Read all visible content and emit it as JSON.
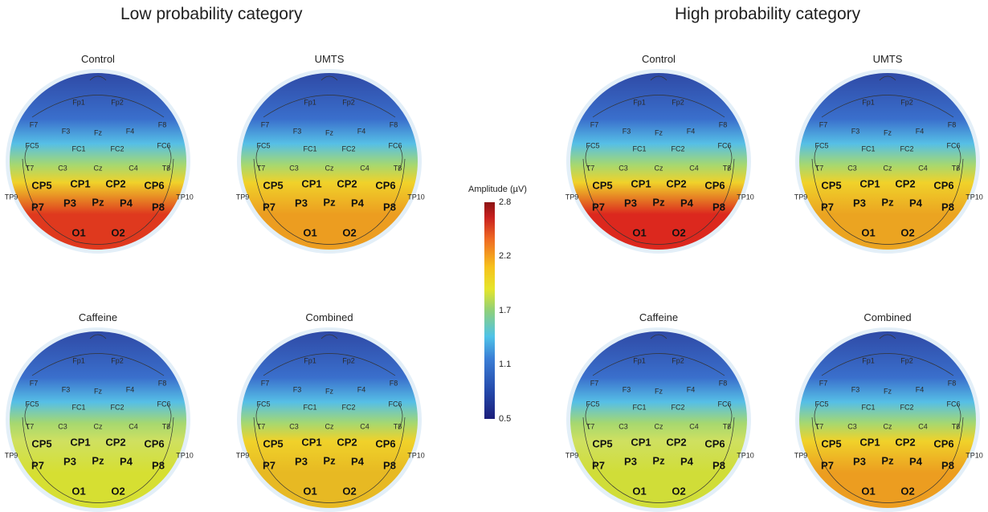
{
  "sections": {
    "low": "Low probability category",
    "high": "High probability category"
  },
  "conditions": {
    "control": "Control",
    "umts": "UMTS",
    "caffeine": "Caffeine",
    "combined": "Combined"
  },
  "electrodes": {
    "small": [
      "Fp1",
      "Fp2",
      "F7",
      "F3",
      "Fz",
      "F4",
      "F8",
      "FC5",
      "FC1",
      "FC2",
      "FC6",
      "T7",
      "C3",
      "Cz",
      "C4",
      "T8",
      "TP9",
      "TP10"
    ],
    "big": [
      "CP5",
      "CP1",
      "CP2",
      "CP6",
      "P7",
      "P3",
      "Pz",
      "P4",
      "P8",
      "O1",
      "O2"
    ]
  },
  "colorbar": {
    "title": "Amplitude (µV)",
    "ticks": [
      "2.8",
      "2.2",
      "1.7",
      "1.1",
      "0.5"
    ],
    "range": [
      0.5,
      2.8
    ]
  },
  "maps": [
    {
      "group": "low",
      "condition": "Control",
      "posterior_level": 0.95
    },
    {
      "group": "low",
      "condition": "UMTS",
      "posterior_level": 0.8
    },
    {
      "group": "low",
      "condition": "Caffeine",
      "posterior_level": 0.55
    },
    {
      "group": "low",
      "condition": "Combined",
      "posterior_level": 0.72
    },
    {
      "group": "high",
      "condition": "Control",
      "posterior_level": 0.97
    },
    {
      "group": "high",
      "condition": "UMTS",
      "posterior_level": 0.78
    },
    {
      "group": "high",
      "condition": "Caffeine",
      "posterior_level": 0.52
    },
    {
      "group": "high",
      "condition": "Combined",
      "posterior_level": 0.8
    }
  ]
}
